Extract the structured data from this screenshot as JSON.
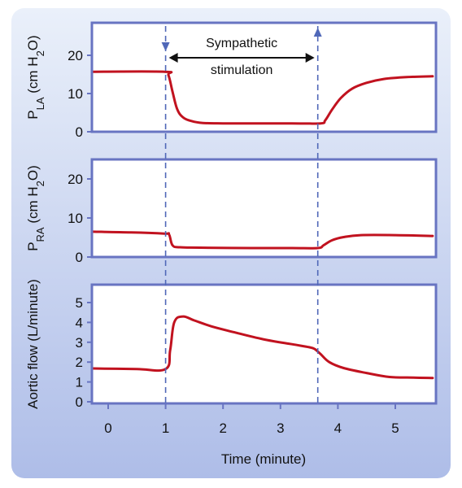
{
  "colors": {
    "background_gradient_top": "#eaf0fa",
    "background_gradient_bottom": "#aebde8",
    "plot_frame": "#6874c2",
    "plot_fill": "#ffffff",
    "curve": "#c1121f",
    "marker_lines": "#5068b8",
    "text": "#111111"
  },
  "chart_data": [
    {
      "id": "pla",
      "type": "line",
      "ylabel_main": "P",
      "ylabel_sub": "LA",
      "ylabel_unit_pre": " (cm H",
      "ylabel_unit_sub": "2",
      "ylabel_unit_post": "O)",
      "ylim": [
        0,
        25
      ],
      "yticks": [
        0,
        10,
        20
      ],
      "x": [
        -0.3,
        0.98,
        1.05,
        1.12,
        1.2,
        1.3,
        1.45,
        1.65,
        2.0,
        2.6,
        3.2,
        3.7,
        3.78,
        3.9,
        4.05,
        4.25,
        4.5,
        4.8,
        5.2,
        5.65
      ],
      "y": [
        15.7,
        15.7,
        14.8,
        10.5,
        6.0,
        3.8,
        2.8,
        2.3,
        2.2,
        2.2,
        2.2,
        2.2,
        3.0,
        5.8,
        8.8,
        11.3,
        12.8,
        13.8,
        14.3,
        14.5
      ],
      "annotation": {
        "line1": "Sympathetic",
        "line2": "stimulation",
        "x_start": 1.0,
        "x_end": 3.65
      }
    },
    {
      "id": "pra",
      "type": "line",
      "ylabel_main": "P",
      "ylabel_sub": "RA",
      "ylabel_unit_pre": " (cm H",
      "ylabel_unit_sub": "2",
      "ylabel_unit_post": "O)",
      "ylim": [
        0,
        25
      ],
      "yticks": [
        0,
        10,
        20
      ],
      "x": [
        -0.3,
        0.4,
        0.98,
        1.06,
        1.12,
        1.25,
        1.6,
        2.5,
        3.2,
        3.65,
        3.75,
        3.9,
        4.1,
        4.4,
        5.0,
        5.65
      ],
      "y": [
        6.5,
        6.3,
        6.0,
        5.8,
        3.0,
        2.5,
        2.4,
        2.3,
        2.3,
        2.3,
        3.0,
        4.3,
        5.1,
        5.6,
        5.6,
        5.4
      ],
      "annotation": null
    },
    {
      "id": "aortic",
      "type": "line",
      "ylabel_main": "Aortic flow (L/minute)",
      "ylabel_sub": "",
      "ylabel_unit_pre": "",
      "ylabel_unit_sub": "",
      "ylabel_unit_post": "",
      "ylim": [
        0,
        5.8
      ],
      "yticks": [
        0,
        1,
        2,
        3,
        4,
        5
      ],
      "x": [
        -0.3,
        0.5,
        1.0,
        1.08,
        1.15,
        1.3,
        1.5,
        1.8,
        2.2,
        2.7,
        3.2,
        3.5,
        3.6,
        3.7,
        3.85,
        4.1,
        4.5,
        4.9,
        5.3,
        5.65
      ],
      "y": [
        1.68,
        1.65,
        1.65,
        2.6,
        4.0,
        4.3,
        4.1,
        3.8,
        3.5,
        3.15,
        2.9,
        2.75,
        2.65,
        2.4,
        2.0,
        1.7,
        1.45,
        1.25,
        1.22,
        1.2
      ],
      "annotation": null,
      "xlabel": "Time (minute)",
      "xticks": [
        0,
        1,
        2,
        3,
        4,
        5
      ]
    }
  ],
  "markers": {
    "x_on": 1.0,
    "x_off": 3.65
  },
  "xlim": [
    -0.3,
    5.65
  ]
}
